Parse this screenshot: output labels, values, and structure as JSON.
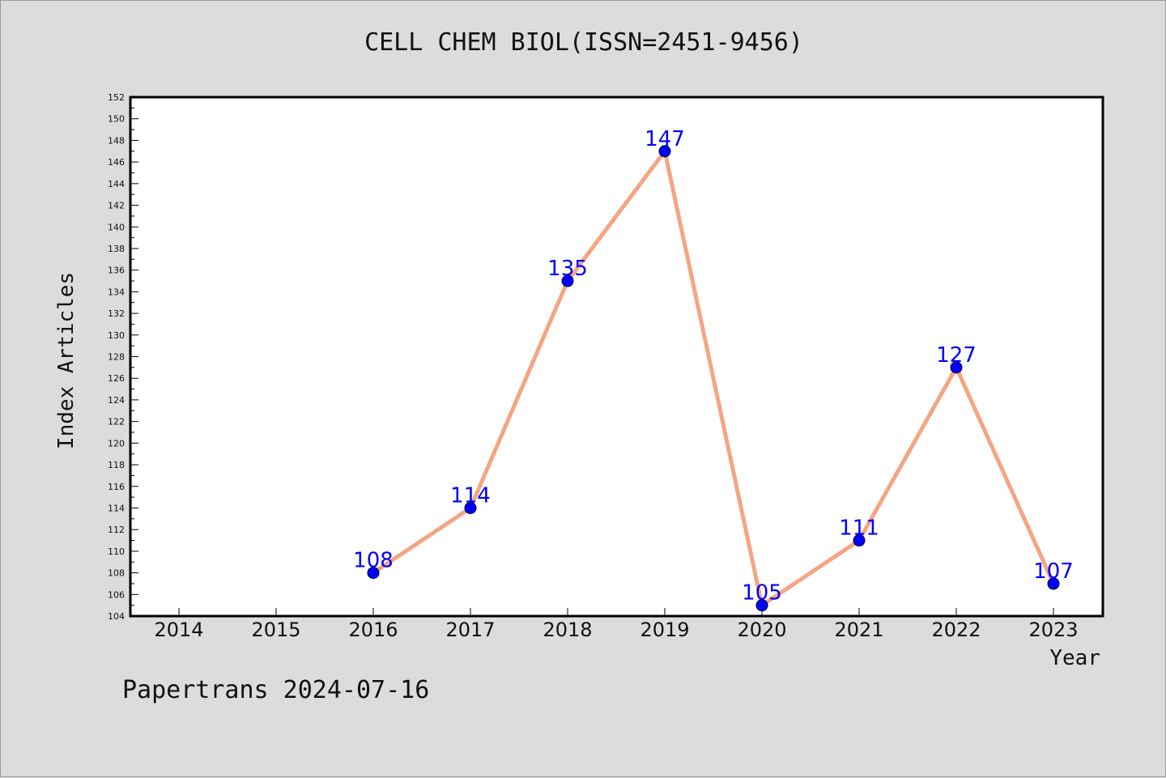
{
  "title": "CELL CHEM BIOL(ISSN=2451-9456)",
  "footer": "Papertrans 2024-07-16",
  "colors": {
    "background": "#dcdcdc",
    "plot_bg": "#ffffff",
    "line": "#f4a582",
    "marker": "#0000ff",
    "label": "#0000ff"
  },
  "chart_data": {
    "type": "line",
    "title": "CELL CHEM BIOL(ISSN=2451-9456)",
    "xlabel": "Year",
    "ylabel": "Index Articles",
    "categories": [
      "2014",
      "2015",
      "2016",
      "2017",
      "2018",
      "2019",
      "2020",
      "2021",
      "2022",
      "2023"
    ],
    "ylim": [
      104,
      152
    ],
    "ytick_step": 2,
    "grid": false,
    "series": [
      {
        "x": [
          "2016",
          "2017",
          "2018",
          "2019",
          "2020",
          "2021",
          "2022",
          "2023"
        ],
        "values": [
          108,
          114,
          135,
          147,
          105,
          111,
          127,
          107
        ]
      }
    ]
  }
}
